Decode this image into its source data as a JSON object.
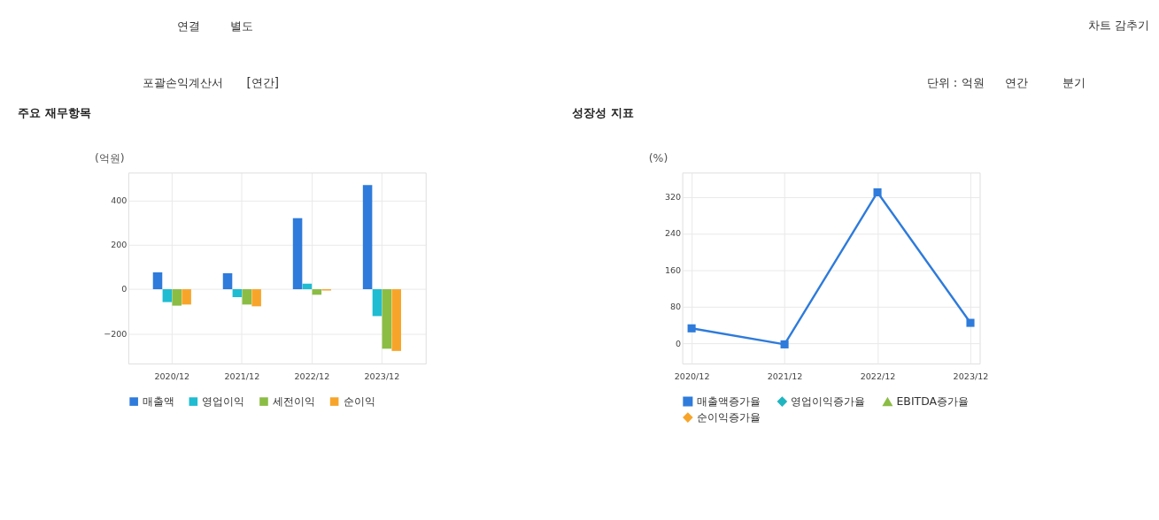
{
  "chart_data": [
    {
      "type": "bar",
      "title": "주요 재무항목",
      "ylabel": "(억원)",
      "annotations": [
        "연결",
        "별도",
        "차트 감추기",
        "포괄손익계산서",
        "[연간]",
        "단위 : 억원",
        "연간",
        "분기"
      ],
      "categories": [
        "2020/12",
        "2021/12",
        "2022/12",
        "2023/12"
      ],
      "series": [
        {
          "name": "매출액",
          "color": "#2e7bdb",
          "values": [
            76,
            72,
            320,
            469
          ]
        },
        {
          "name": "영업이익",
          "color": "#1fbcd2",
          "values": [
            -58,
            -36,
            25,
            -121
          ]
        },
        {
          "name": "세전이익",
          "color": "#8bbd45",
          "values": [
            -74,
            -69,
            -25,
            -268
          ]
        },
        {
          "name": "순이익",
          "color": "#f7a52a",
          "values": [
            -69,
            -77,
            -6,
            -278
          ]
        }
      ],
      "ylim": [
        -335,
        525
      ],
      "yticks": [
        -200,
        0,
        200,
        400
      ],
      "grid": true,
      "legend": "bottom"
    },
    {
      "type": "line",
      "title": "성장성 지표",
      "ylabel": "(%)",
      "categories": [
        "2020/12",
        "2021/12",
        "2022/12",
        "2023/12"
      ],
      "series": [
        {
          "name": "매출액증가율",
          "color": "#2e7bdb",
          "marker": "square",
          "values": [
            33,
            -2,
            330,
            45
          ]
        },
        {
          "name": "영업이익증가율",
          "color": "#1fb5c0",
          "marker": "diamond",
          "values": [
            null,
            null,
            null,
            null
          ]
        },
        {
          "name": "EBITDA증가율",
          "color": "#8bbd45",
          "marker": "triangle",
          "values": [
            null,
            null,
            null,
            null
          ]
        },
        {
          "name": "순이익증가율",
          "color": "#f7a52a",
          "marker": "diamond",
          "values": [
            null,
            null,
            null,
            null
          ]
        }
      ],
      "ylim": [
        -44,
        373
      ],
      "yticks": [
        0,
        80,
        160,
        240,
        320
      ],
      "grid": true,
      "legend": "bottom"
    }
  ]
}
